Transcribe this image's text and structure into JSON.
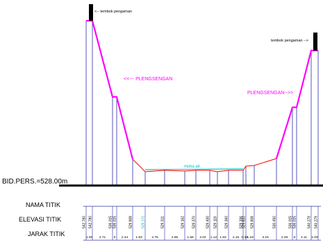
{
  "annotations": {
    "wall_left": "<-- tembok pengaman",
    "wall_right": "tembok pengaman -->",
    "slope_left": "<<--- PLENGSENGAN",
    "slope_right": "PLENGSENGAN-->>",
    "water": "muka air",
    "datum": "BID.PERS.=528.00m"
  },
  "row_labels": {
    "name": "NAMA TITIK",
    "elevation": "ELEVASI TITIK",
    "distance": "JARAK TITIK"
  },
  "elevations": [
    "542.780",
    "542.780",
    "536.015",
    "536.015",
    "529.909",
    "529.170",
    "529.311",
    "529.162",
    "529.370",
    "529.400",
    "529.119",
    "529.360",
    "529.306",
    "529.822",
    "529.808",
    "530.450",
    "536.015",
    "536.015",
    "540.279",
    "540.279"
  ],
  "distances": [
    "1.00",
    "2.71",
    "0",
    "2.44",
    "1.83",
    "2.75",
    "2.86",
    "1.58",
    "2.02",
    "1.12",
    "1.63",
    "2.16",
    "0.40",
    "1.19",
    "3.19",
    "2.28",
    "0",
    "2.11",
    "1.00"
  ],
  "colors": {
    "slope": "#ff00ff",
    "ground": "#ff0000",
    "water": "#00cccc",
    "wall": "#000000",
    "verticals": "#1f1fa8"
  }
}
